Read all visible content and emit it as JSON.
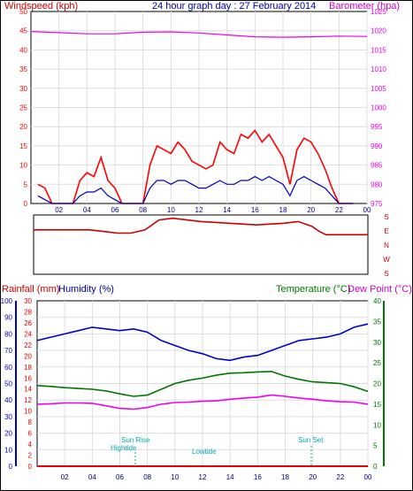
{
  "chart_data": [
    {
      "panel": "wind-pressure",
      "type": "line",
      "title": "24 hour graph day : 27 February 2014",
      "ylabel_left": "Windspeed (kph)",
      "ylabel_right": "Barometer (hpa)",
      "x_ticks": [
        "02",
        "04",
        "06",
        "08",
        "10",
        "12",
        "14",
        "16",
        "18",
        "20",
        "22",
        "00"
      ],
      "ylim_left": [
        0,
        50
      ],
      "y_ticks_left": [
        "0",
        "5",
        "10",
        "15",
        "20",
        "25",
        "30",
        "35",
        "40",
        "45",
        "50"
      ],
      "ylim_right": [
        975,
        1025
      ],
      "y_ticks_right": [
        "975",
        "980",
        "985",
        "990",
        "995",
        "1000",
        "1005",
        "1010",
        "1015",
        "1020",
        "1025"
      ],
      "colors": {
        "gust": "#ff0000",
        "avg": "#0000c0",
        "barometer": "#ee00ee"
      },
      "series": [
        {
          "role": "gust",
          "x": [
            0.5,
            1,
            1.5,
            2,
            2.5,
            3,
            3.5,
            4,
            4.5,
            5,
            5.5,
            6,
            6.5,
            7,
            7.5,
            8,
            8.5,
            9,
            9.5,
            10,
            10.5,
            11,
            11.5,
            12,
            12.5,
            13,
            13.5,
            14,
            14.5,
            15,
            15.5,
            16,
            16.5,
            17,
            17.5,
            18,
            18.5,
            19,
            19.5,
            20,
            20.5,
            21,
            21.5,
            22,
            22.5,
            23
          ],
          "values": [
            5,
            4,
            0,
            0,
            0,
            0,
            6,
            8,
            7,
            12,
            6,
            4,
            0,
            0,
            0,
            0,
            10,
            15,
            14,
            13,
            16,
            14,
            11,
            10,
            9,
            10,
            16,
            14,
            13,
            18,
            17,
            19,
            16,
            18,
            15,
            12,
            5,
            14,
            17,
            16,
            13,
            9,
            4,
            0,
            0,
            0
          ]
        },
        {
          "role": "avg",
          "x": [
            0.5,
            1,
            1.5,
            2,
            2.5,
            3,
            3.5,
            4,
            4.5,
            5,
            5.5,
            6,
            6.5,
            7,
            7.5,
            8,
            8.5,
            9,
            9.5,
            10,
            10.5,
            11,
            11.5,
            12,
            12.5,
            13,
            13.5,
            14,
            14.5,
            15,
            15.5,
            16,
            16.5,
            17,
            17.5,
            18,
            18.5,
            19,
            19.5,
            20,
            20.5,
            21,
            21.5,
            22,
            22.5,
            23
          ],
          "values": [
            2,
            1,
            0,
            0,
            0,
            0,
            2,
            3,
            3,
            4,
            2,
            1,
            0,
            0,
            0,
            0,
            4,
            6,
            6,
            5,
            6,
            6,
            5,
            4,
            4,
            5,
            6,
            5,
            5,
            6,
            6,
            7,
            6,
            7,
            6,
            5,
            2,
            6,
            7,
            6,
            5,
            4,
            2,
            0,
            0,
            0
          ]
        },
        {
          "role": "barometer",
          "x": [
            0,
            2,
            4,
            6,
            8,
            10,
            12,
            14,
            16,
            18,
            20,
            22,
            24
          ],
          "values": [
            1019.8,
            1019.5,
            1019.2,
            1019.2,
            1019.6,
            1019.7,
            1019.4,
            1018.9,
            1018.4,
            1018.3,
            1018.4,
            1018.6,
            1018.5
          ]
        }
      ]
    },
    {
      "panel": "wind-direction",
      "type": "line",
      "y_ticks": [
        "S",
        "E",
        "N",
        "W",
        "S"
      ],
      "colors": {
        "direction": "#cc0000"
      },
      "series": [
        {
          "role": "direction",
          "x": [
            0,
            2,
            4,
            5,
            6,
            7,
            7.5,
            8,
            8.5,
            9,
            10,
            11,
            12,
            14,
            16,
            18,
            19,
            20,
            20.5,
            21,
            22,
            24
          ],
          "values": [
            270,
            270,
            270,
            260,
            250,
            250,
            260,
            270,
            300,
            330,
            340,
            330,
            320,
            310,
            300,
            310,
            320,
            290,
            260,
            240,
            240,
            240
          ]
        }
      ]
    },
    {
      "panel": "rain-humidity-temp",
      "type": "line",
      "ylabel_rain": "Rainfall (mm)",
      "ylabel_humidity": "Humidity (%)",
      "ylabel_temperature": "Temperature (°C)",
      "ylabel_dewpoint": "Dew Point (°C)",
      "x_ticks": [
        "02",
        "04",
        "06",
        "08",
        "10",
        "12",
        "14",
        "16",
        "18",
        "20",
        "22",
        "00"
      ],
      "y_ticks_humidity": [
        "0",
        "10",
        "20",
        "30",
        "40",
        "50",
        "60",
        "70",
        "80",
        "90",
        "100"
      ],
      "y_ticks_rain": [
        "0",
        "2",
        "4",
        "6",
        "8",
        "10",
        "12",
        "14",
        "16",
        "18",
        "20",
        "22",
        "24",
        "26",
        "28",
        "30"
      ],
      "y_ticks_temp": [
        "0",
        "5",
        "10",
        "15",
        "20",
        "25",
        "30",
        "35",
        "40"
      ],
      "annotations": {
        "sunrise": "Sun Rise",
        "sunset": "Sun Set",
        "hightide": "Hightide",
        "lowtide": "Lowtide"
      },
      "colors": {
        "humidity": "#0000cc",
        "temperature": "#007700",
        "dewpoint": "#ee00ee",
        "rain": "#ee0000"
      },
      "series": [
        {
          "role": "humidity",
          "x": [
            0,
            1,
            2,
            3,
            4,
            5,
            6,
            7,
            8,
            9,
            10,
            11,
            12,
            13,
            14,
            15,
            16,
            17,
            18,
            19,
            20,
            21,
            22,
            23,
            24
          ],
          "values": [
            76,
            78,
            80,
            82,
            84,
            83,
            82,
            83,
            81,
            76,
            73,
            70,
            68,
            65,
            64,
            66,
            67,
            70,
            73,
            76,
            77,
            78,
            80,
            84,
            86
          ]
        },
        {
          "role": "temperature",
          "x": [
            0,
            1,
            2,
            3,
            4,
            5,
            6,
            7,
            8,
            9,
            10,
            11,
            12,
            13,
            14,
            15,
            16,
            17,
            18,
            19,
            20,
            21,
            22,
            23,
            24
          ],
          "values": [
            19.5,
            19.3,
            19,
            18.8,
            18.6,
            18.2,
            17.5,
            16.9,
            17.2,
            18.6,
            20,
            20.8,
            21.3,
            22,
            22.5,
            22.6,
            22.8,
            22.9,
            21.8,
            21,
            20.4,
            20.2,
            20,
            19.2,
            18.1
          ]
        },
        {
          "role": "dewpoint",
          "x": [
            0,
            1,
            2,
            3,
            4,
            5,
            6,
            7,
            8,
            9,
            10,
            11,
            12,
            13,
            14,
            15,
            16,
            17,
            18,
            19,
            20,
            21,
            22,
            23,
            24
          ],
          "values": [
            15,
            15.1,
            15.3,
            15.3,
            15.2,
            14.6,
            14,
            13.8,
            14.2,
            15,
            15.4,
            15.5,
            15.7,
            15.8,
            16.2,
            16.5,
            16.7,
            17.2,
            16.9,
            16.5,
            16.2,
            15.8,
            15.6,
            15.5,
            15
          ]
        },
        {
          "role": "rain",
          "x": [
            0,
            24
          ],
          "values": [
            0,
            0
          ]
        }
      ]
    }
  ]
}
